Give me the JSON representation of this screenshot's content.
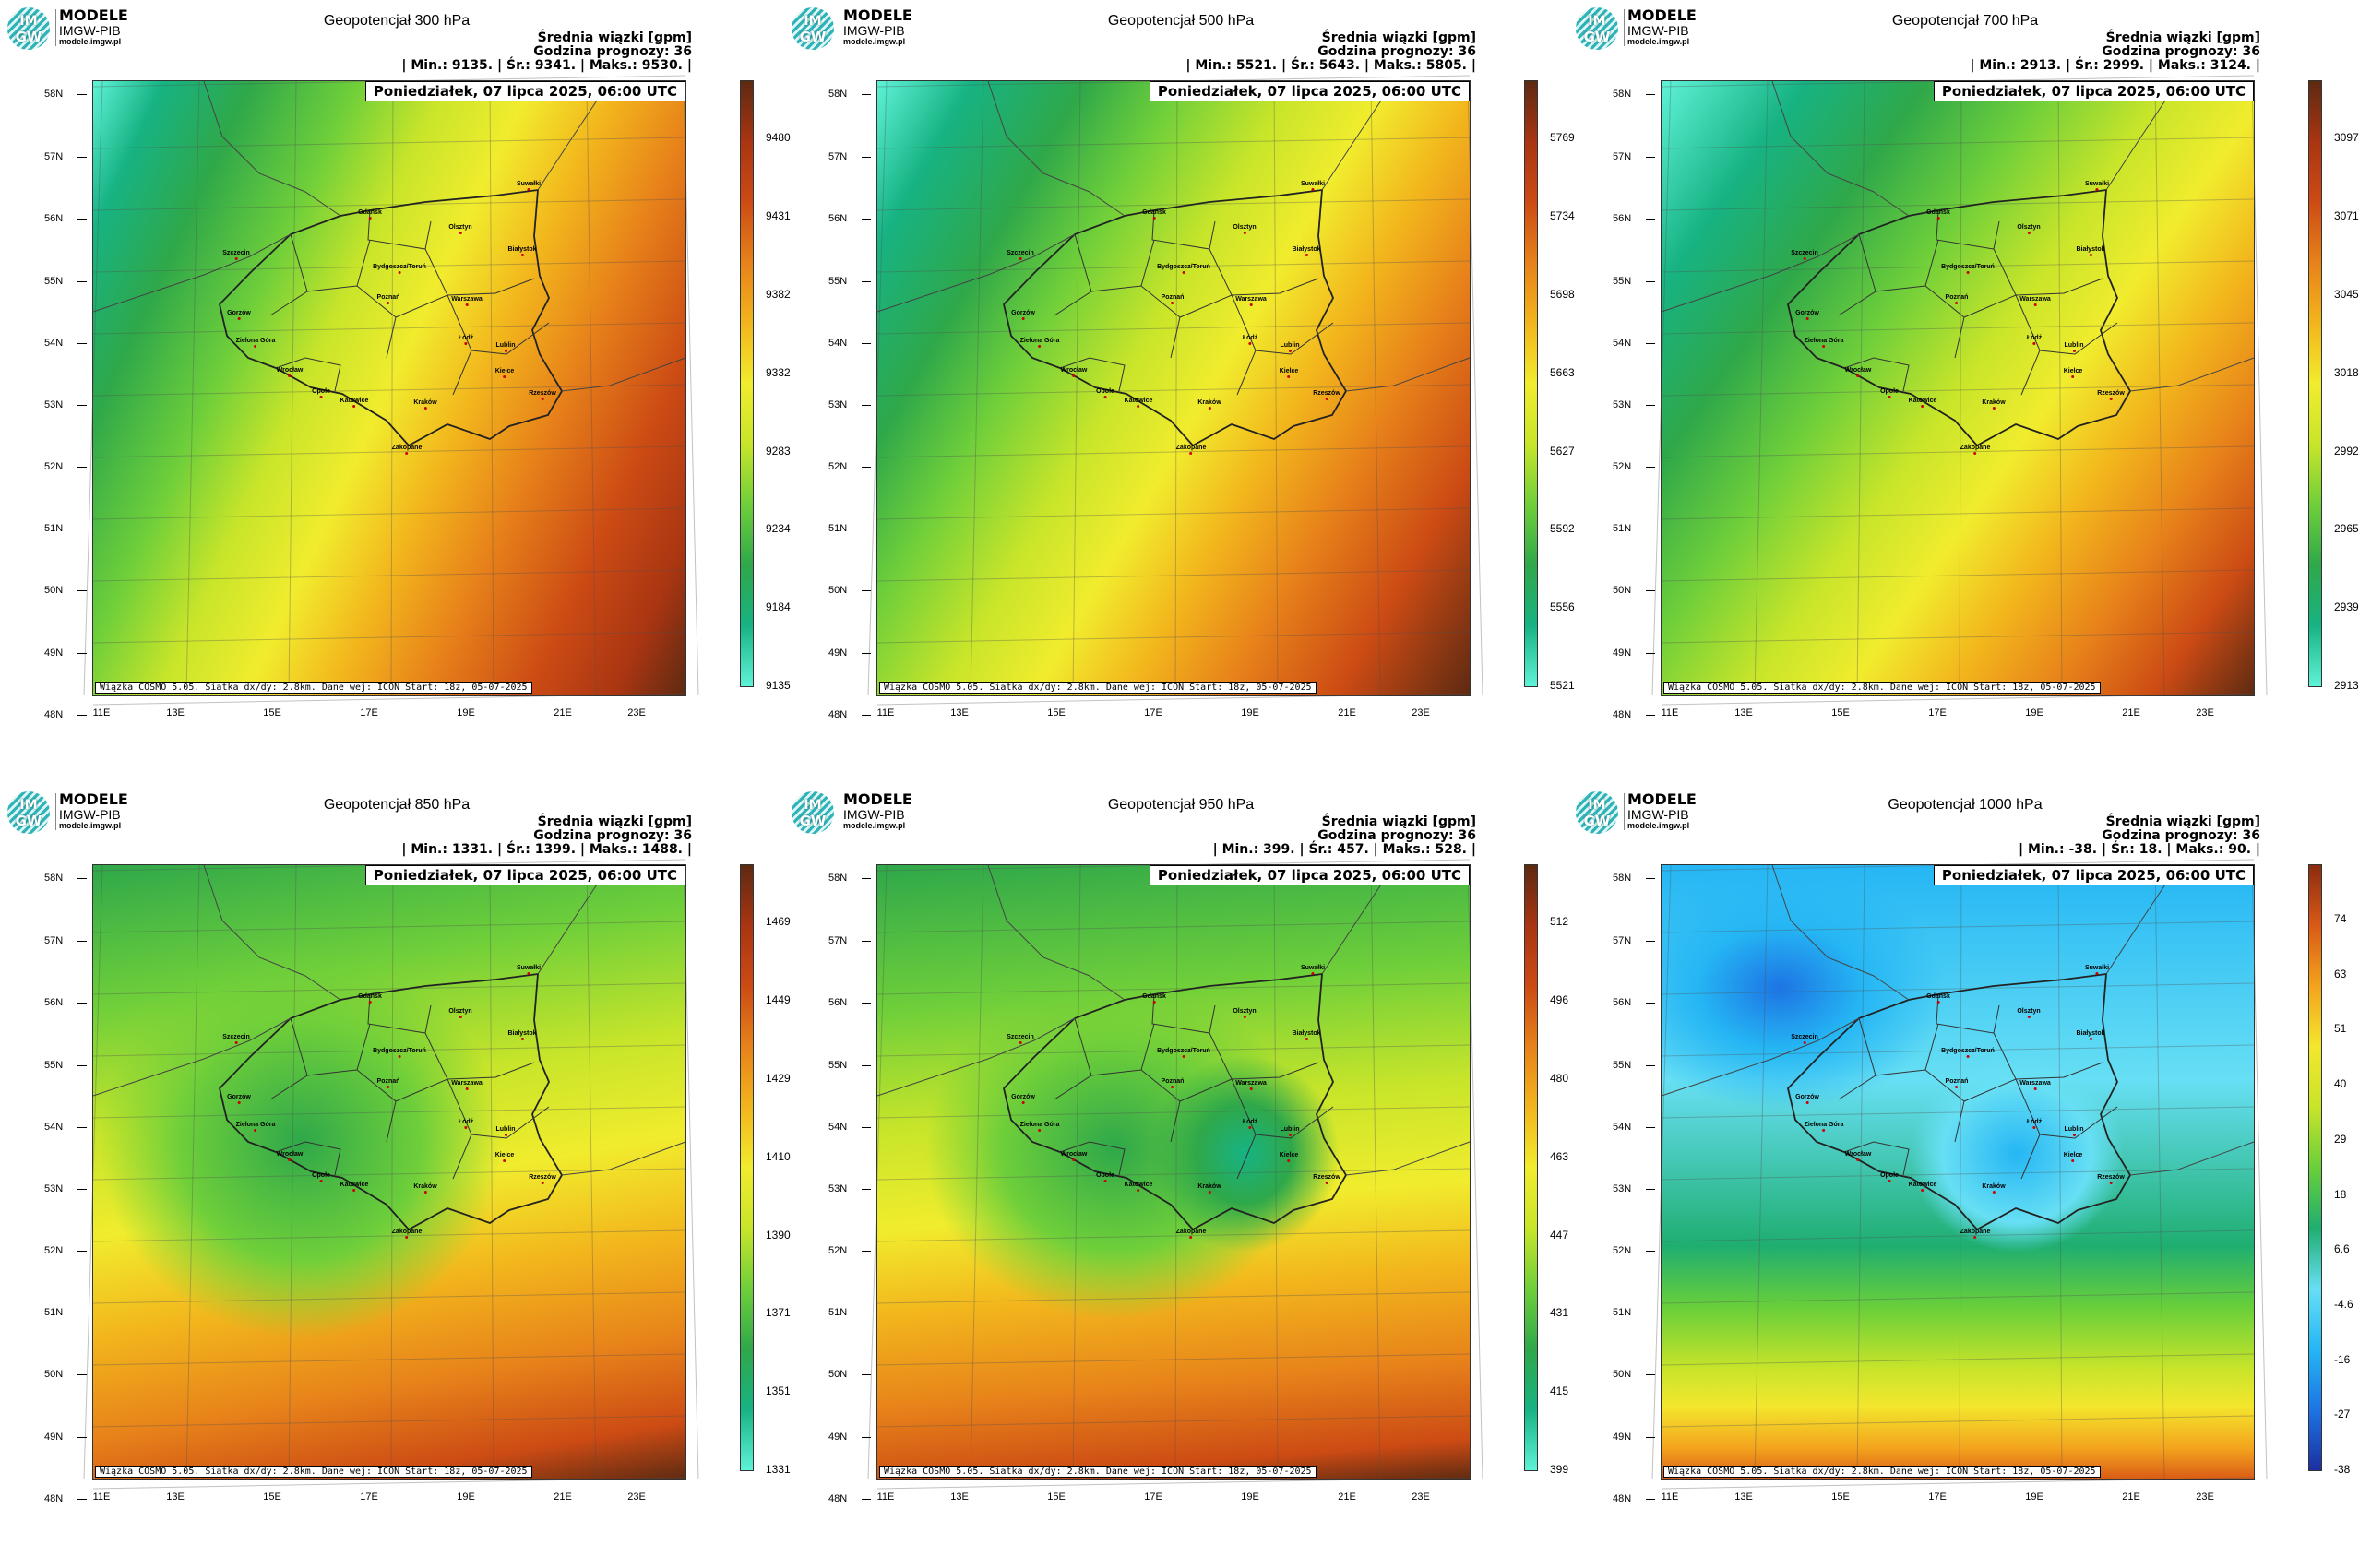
{
  "logo": {
    "name": "MODELE",
    "org": "IMGW-PIB",
    "site": "modele.imgw.pl",
    "badge_top": "IM",
    "badge_bottom": "GW"
  },
  "common": {
    "subtitle": "Średnia wiązki [gpm]",
    "forecast": "Godzina prognozy: 36",
    "date": "Poniedziałek, 07 lipca 2025, 06:00 UTC",
    "footer": "Wiązka COSMO 5.05. Siatka dx/dy: 2.8km. Dane wej: ICON Start: 18z, 05-07-2025",
    "latitudes": [
      "58N",
      "57N",
      "56N",
      "55N",
      "54N",
      "53N",
      "52N",
      "51N",
      "50N",
      "49N",
      "48N"
    ],
    "longitudes": [
      "11E",
      "13E",
      "15E",
      "17E",
      "19E",
      "21E",
      "23E"
    ],
    "cities": [
      "Gdańsk",
      "Olsztyn",
      "Szczecin",
      "Białystok",
      "Bydgoszcz/Toruń",
      "Suwałki",
      "Gorzów",
      "Poznań",
      "Warszawa",
      "Zielona Góra",
      "Łódź",
      "Lublin",
      "Wrocław",
      "Kielce",
      "Opole",
      "Rzeszów",
      "Katowice",
      "Kraków",
      "Zakopane"
    ]
  },
  "colors": {
    "geo_ramp": [
      "#5ff2d8",
      "#17b383",
      "#2fa84a",
      "#6fcf3a",
      "#c8e52a",
      "#f1ec2d",
      "#f2b51c",
      "#e7821a",
      "#cc4b14",
      "#a93512",
      "#5d2a12"
    ],
    "cold_ramp": [
      "#1c2fa0",
      "#1d74e3",
      "#25b6f4",
      "#67dff4",
      "#1fae70",
      "#69cf3a",
      "#c8e42a",
      "#f3e72d",
      "#f3a31d",
      "#d95a16",
      "#8b2b10"
    ]
  },
  "panels": [
    {
      "title": "Geopotencjał 300 hPa",
      "stats": "| Min.: 9135. | Śr.: 9341. | Maks.: 9530. |",
      "ticks": [
        "9480",
        "9431",
        "9382",
        "9332",
        "9283",
        "9234",
        "9184",
        "9135"
      ],
      "palette": "geo"
    },
    {
      "title": "Geopotencjał 500 hPa",
      "stats": "| Min.: 5521. | Śr.: 5643. | Maks.: 5805. |",
      "ticks": [
        "5769",
        "5734",
        "5698",
        "5663",
        "5627",
        "5592",
        "5556",
        "5521"
      ],
      "palette": "geo"
    },
    {
      "title": "Geopotencjał 700 hPa",
      "stats": "| Min.: 2913. | Śr.: 2999. | Maks.: 3124. |",
      "ticks": [
        "3097",
        "3071",
        "3045",
        "3018",
        "2992",
        "2965",
        "2939",
        "2913"
      ],
      "palette": "geo"
    },
    {
      "title": "Geopotencjał 850 hPa",
      "stats": "| Min.: 1331. | Śr.: 1399. | Maks.: 1488. |",
      "ticks": [
        "1469",
        "1449",
        "1429",
        "1410",
        "1390",
        "1371",
        "1351",
        "1331"
      ],
      "palette": "geo"
    },
    {
      "title": "Geopotencjał 950 hPa",
      "stats": "| Min.: 399. | Śr.: 457. | Maks.: 528. |",
      "ticks": [
        "512",
        "496",
        "480",
        "463",
        "447",
        "431",
        "415",
        "399"
      ],
      "palette": "geo"
    },
    {
      "title": "Geopotencjał 1000 hPa",
      "stats": "| Min.: -38. | Śr.: 18. | Maks.: 90. |",
      "ticks": [
        "74",
        "63",
        "51",
        "40",
        "29",
        "18",
        "6.6",
        "-4.6",
        "-16",
        "-27",
        "-38"
      ],
      "palette": "cold"
    }
  ]
}
